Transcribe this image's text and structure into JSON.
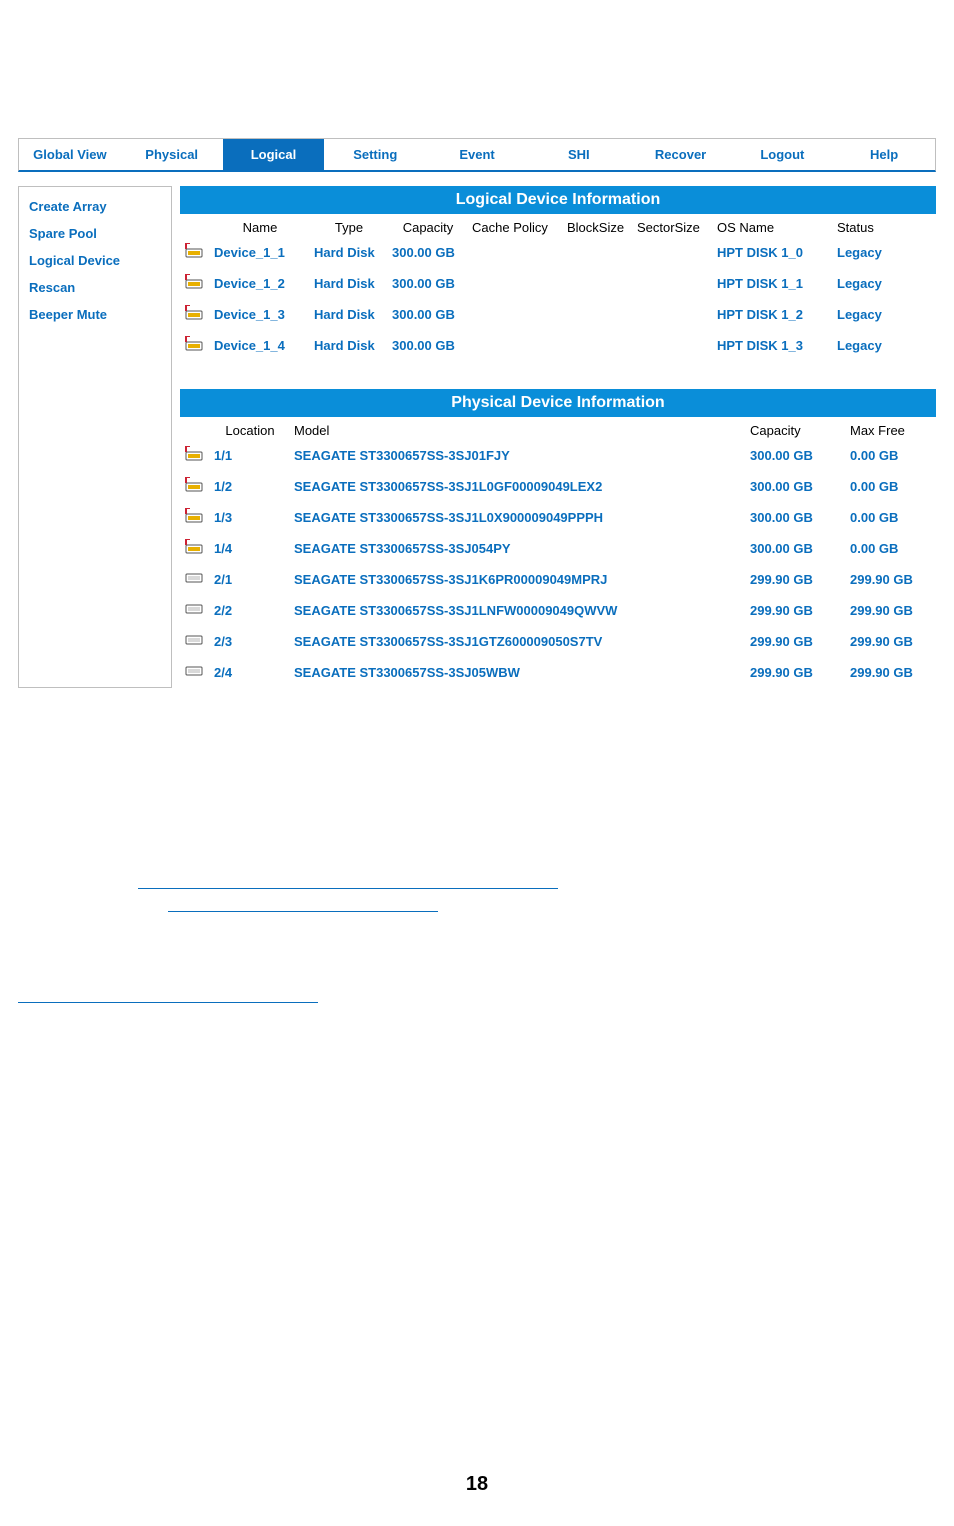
{
  "tabs": {
    "global_view": "Global View",
    "physical": "Physical",
    "logical": "Logical",
    "setting": "Setting",
    "event": "Event",
    "shi": "SHI",
    "recover": "Recover",
    "logout": "Logout",
    "help": "Help"
  },
  "sidebar": {
    "create_array": "Create Array",
    "spare_pool": "Spare Pool",
    "logical_device": "Logical Device",
    "rescan": "Rescan",
    "beeper_mute": "Beeper Mute"
  },
  "logical_section": {
    "title": "Logical Device Information",
    "columns": {
      "name": "Name",
      "type": "Type",
      "capacity": "Capacity",
      "cache_policy": "Cache Policy",
      "block_size": "BlockSize",
      "sector_size": "SectorSize",
      "os_name": "OS Name",
      "status": "Status"
    },
    "rows": [
      {
        "name": "Device_1_1",
        "type": "Hard Disk",
        "capacity": "300.00 GB",
        "cache_policy": "",
        "block_size": "",
        "sector_size": "",
        "os_name": "HPT DISK 1_0",
        "status": "Legacy"
      },
      {
        "name": "Device_1_2",
        "type": "Hard Disk",
        "capacity": "300.00 GB",
        "cache_policy": "",
        "block_size": "",
        "sector_size": "",
        "os_name": "HPT DISK 1_1",
        "status": "Legacy"
      },
      {
        "name": "Device_1_3",
        "type": "Hard Disk",
        "capacity": "300.00 GB",
        "cache_policy": "",
        "block_size": "",
        "sector_size": "",
        "os_name": "HPT DISK 1_2",
        "status": "Legacy"
      },
      {
        "name": "Device_1_4",
        "type": "Hard Disk",
        "capacity": "300.00 GB",
        "cache_policy": "",
        "block_size": "",
        "sector_size": "",
        "os_name": "HPT DISK 1_3",
        "status": "Legacy"
      }
    ]
  },
  "physical_section": {
    "title": "Physical Device Information",
    "columns": {
      "location": "Location",
      "model": "Model",
      "capacity": "Capacity",
      "max_free": "Max Free"
    },
    "rows": [
      {
        "icon": "used",
        "location": "1/1",
        "model": "SEAGATE ST3300657SS-3SJ01FJY",
        "capacity": "300.00 GB",
        "max_free": "0.00 GB"
      },
      {
        "icon": "used",
        "location": "1/2",
        "model": "SEAGATE ST3300657SS-3SJ1L0GF00009049LEX2",
        "capacity": "300.00 GB",
        "max_free": "0.00 GB"
      },
      {
        "icon": "used",
        "location": "1/3",
        "model": "SEAGATE ST3300657SS-3SJ1L0X900009049PPPH",
        "capacity": "300.00 GB",
        "max_free": "0.00 GB"
      },
      {
        "icon": "used",
        "location": "1/4",
        "model": "SEAGATE ST3300657SS-3SJ054PY",
        "capacity": "300.00 GB",
        "max_free": "0.00 GB"
      },
      {
        "icon": "free",
        "location": "2/1",
        "model": "SEAGATE ST3300657SS-3SJ1K6PR00009049MPRJ",
        "capacity": "299.90 GB",
        "max_free": "299.90 GB"
      },
      {
        "icon": "free",
        "location": "2/2",
        "model": "SEAGATE ST3300657SS-3SJ1LNFW00009049QWVW",
        "capacity": "299.90 GB",
        "max_free": "299.90 GB"
      },
      {
        "icon": "free",
        "location": "2/3",
        "model": "SEAGATE ST3300657SS-3SJ1GTZ600009050S7TV",
        "capacity": "299.90 GB",
        "max_free": "299.90 GB"
      },
      {
        "icon": "free",
        "location": "2/4",
        "model": "SEAGATE ST3300657SS-3SJ05WBW",
        "capacity": "299.90 GB",
        "max_free": "299.90 GB"
      }
    ]
  },
  "page_number": "18",
  "colors": {
    "accent": "#0a6ebd",
    "header_bg": "#0a8ed9",
    "border": "#bfbfbf"
  }
}
